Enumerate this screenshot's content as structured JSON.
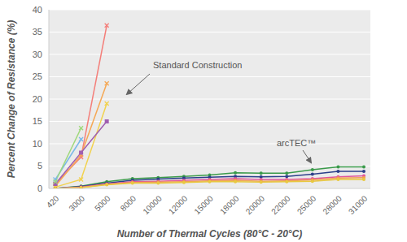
{
  "chart_data": {
    "type": "line",
    "x_label": "Number of Thermal Cycles (80°C - 20°C)",
    "y_label": "Percent Change of Resistance (%)",
    "categories": [
      "420",
      "3000",
      "5000",
      "8000",
      "10000",
      "12000",
      "15000",
      "18000",
      "20000",
      "22000",
      "25000",
      "28000",
      "31000"
    ],
    "ylim": [
      0,
      40
    ],
    "yticks": [
      0,
      5,
      10,
      15,
      20,
      25,
      30,
      35,
      40
    ],
    "grid": true,
    "annotations": [
      "Standard Construction",
      "arcTEC™"
    ],
    "series": [
      {
        "color": "#f47f7a",
        "marker": "x",
        "values": [
          1,
          7,
          36.5,
          null,
          null,
          null,
          null,
          null,
          null,
          null,
          null,
          null,
          null
        ]
      },
      {
        "color": "#f5a855",
        "marker": "x",
        "values": [
          0.5,
          7.5,
          23.5,
          null,
          null,
          null,
          null,
          null,
          null,
          null,
          null,
          null,
          null
        ]
      },
      {
        "color": "#f2d24e",
        "marker": "x",
        "values": [
          0.3,
          2,
          19,
          null,
          null,
          null,
          null,
          null,
          null,
          null,
          null,
          null,
          null
        ]
      },
      {
        "color": "#a05fb0",
        "marker": "square",
        "values": [
          1,
          8,
          15,
          null,
          null,
          null,
          null,
          null,
          null,
          null,
          null,
          null,
          null
        ]
      },
      {
        "color": "#7ab8e8",
        "marker": "x",
        "values": [
          2,
          11,
          null,
          null,
          null,
          null,
          null,
          null,
          null,
          null,
          null,
          null,
          null
        ]
      },
      {
        "color": "#9ed87a",
        "marker": "x",
        "values": [
          1.5,
          13.5,
          null,
          null,
          null,
          null,
          null,
          null,
          null,
          null,
          null,
          null,
          null
        ]
      },
      {
        "color": "#3a9a4a",
        "marker": "circle",
        "values": [
          0,
          0.5,
          1.5,
          2.2,
          2.4,
          2.7,
          3,
          3.5,
          3.4,
          3.4,
          4.2,
          4.8,
          4.8
        ]
      },
      {
        "color": "#2b3f8a",
        "marker": "circle",
        "values": [
          0,
          0.4,
          1.2,
          1.8,
          2.1,
          2.3,
          2.5,
          2.7,
          2.6,
          2.7,
          3.2,
          3.8,
          3.8
        ]
      },
      {
        "color": "#e0569a",
        "marker": "circle",
        "values": [
          0,
          0.3,
          1,
          1.5,
          1.6,
          1.8,
          2,
          2.2,
          2,
          2,
          2.2,
          2.6,
          2.8
        ]
      },
      {
        "color": "#f0a050",
        "marker": "circle",
        "values": [
          0,
          0.2,
          0.9,
          1.3,
          1.4,
          1.5,
          1.7,
          1.8,
          1.6,
          1.7,
          1.9,
          2.3,
          2.4
        ]
      },
      {
        "color": "#e8c840",
        "marker": "circle",
        "values": [
          0,
          0.2,
          0.8,
          1.2,
          1.2,
          1.3,
          1.5,
          1.5,
          1.4,
          1.5,
          1.6,
          2,
          2
        ]
      }
    ]
  }
}
